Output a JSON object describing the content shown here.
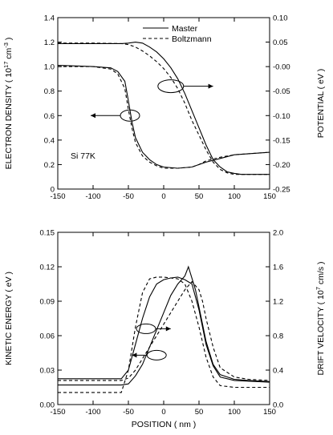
{
  "chart_data": [
    {
      "type": "line",
      "xlabel": "",
      "ylabel": "ELECTRON DENSITY ( 10{17} cm{-3} )",
      "ylabel_parts": [
        "ELECTRON DENSITY ( 10",
        "17",
        " cm",
        "-3",
        " )"
      ],
      "y2label": "POTENTIAL ( eV )",
      "xlim": [
        -150,
        150
      ],
      "ylim": [
        0,
        1.4
      ],
      "y2lim": [
        -0.25,
        0.1
      ],
      "x_ticks": [
        "-150",
        "-100",
        "-50",
        "0",
        "50",
        "100",
        "150"
      ],
      "y_ticks": [
        "0",
        "0.2",
        "0.4",
        "0.6",
        "0.8",
        "1.0",
        "1.2",
        "1.4"
      ],
      "y2_ticks": [
        "-0.25",
        "-0.20",
        "-0.15",
        "-0.10",
        "-0.05",
        "-0.00",
        "0.05",
        "0.10"
      ],
      "legend": [
        "Master",
        "Boltzmann"
      ],
      "annotation": "Si 77K",
      "grid": false,
      "series": [
        {
          "name": "Master",
          "axis": "left",
          "style": "solid",
          "x": [
            -150,
            -100,
            -75,
            -65,
            -55,
            -50,
            -45,
            -40,
            -30,
            -20,
            -10,
            0,
            20,
            40,
            50,
            60,
            80,
            100,
            150
          ],
          "y": [
            1.01,
            1.0,
            0.99,
            0.96,
            0.88,
            0.72,
            0.55,
            0.42,
            0.3,
            0.24,
            0.2,
            0.18,
            0.17,
            0.18,
            0.2,
            0.22,
            0.25,
            0.28,
            0.3
          ]
        },
        {
          "name": "Boltzmann",
          "axis": "left",
          "style": "dashed",
          "x": [
            -150,
            -100,
            -75,
            -65,
            -55,
            -50,
            -45,
            -40,
            -30,
            -20,
            -10,
            0,
            20,
            40,
            50,
            60,
            80,
            100,
            150
          ],
          "y": [
            1.0,
            1.0,
            0.98,
            0.94,
            0.82,
            0.65,
            0.5,
            0.38,
            0.27,
            0.22,
            0.19,
            0.17,
            0.17,
            0.18,
            0.2,
            0.23,
            0.26,
            0.28,
            0.3
          ]
        },
        {
          "name": "Master",
          "axis": "right",
          "style": "solid",
          "x": [
            -150,
            -100,
            -60,
            -50,
            -40,
            -30,
            -20,
            -10,
            0,
            10,
            20,
            30,
            40,
            50,
            60,
            70,
            80,
            90,
            100,
            110,
            120,
            130,
            140,
            150
          ],
          "y": [
            0.047,
            0.047,
            0.047,
            0.048,
            0.05,
            0.048,
            0.04,
            0.03,
            0.016,
            -0.002,
            -0.025,
            -0.055,
            -0.09,
            -0.125,
            -0.16,
            -0.19,
            -0.205,
            -0.215,
            -0.218,
            -0.22,
            -0.22,
            -0.22,
            -0.22,
            -0.22
          ]
        },
        {
          "name": "Boltzmann",
          "axis": "right",
          "style": "dashed",
          "x": [
            -150,
            -100,
            -60,
            -50,
            -40,
            -30,
            -20,
            -10,
            0,
            10,
            20,
            30,
            40,
            50,
            60,
            70,
            80,
            90,
            100,
            110,
            120,
            130,
            140,
            150
          ],
          "y": [
            0.048,
            0.048,
            0.047,
            0.045,
            0.04,
            0.032,
            0.022,
            0.01,
            -0.004,
            -0.022,
            -0.045,
            -0.075,
            -0.11,
            -0.14,
            -0.17,
            -0.195,
            -0.21,
            -0.217,
            -0.22,
            -0.22,
            -0.22,
            -0.22,
            -0.22,
            -0.22
          ]
        }
      ]
    },
    {
      "type": "line",
      "xlabel": "POSITION ( nm )",
      "ylabel": "KINETIC ENERGY ( eV )",
      "y2label": "DRIFT VELOCITY ( 10{7} cm/s )",
      "y2label_parts": [
        "DRIFT VELOCITY ( 10",
        "7",
        " cm/s )"
      ],
      "xlim": [
        -150,
        150
      ],
      "ylim": [
        0,
        0.15
      ],
      "y2lim": [
        0,
        2.0
      ],
      "x_ticks": [
        "-150",
        "-100",
        "-50",
        "0",
        "50",
        "100",
        "150"
      ],
      "y_ticks": [
        "0.00",
        "0.03",
        "0.06",
        "0.09",
        "0.12",
        "0.15"
      ],
      "y2_ticks": [
        "0.0",
        "0.4",
        "0.8",
        "1.2",
        "1.6",
        "2.0"
      ],
      "grid": false,
      "series": [
        {
          "name": "Master",
          "axis": "left",
          "style": "solid",
          "x": [
            -150,
            -100,
            -60,
            -50,
            -40,
            -30,
            -20,
            -10,
            0,
            10,
            20,
            30,
            35,
            40,
            45,
            50,
            55,
            60,
            70,
            80,
            100,
            120,
            150
          ],
          "y": [
            0.017,
            0.017,
            0.017,
            0.018,
            0.025,
            0.035,
            0.05,
            0.065,
            0.08,
            0.095,
            0.105,
            0.112,
            0.12,
            0.11,
            0.1,
            0.085,
            0.07,
            0.055,
            0.035,
            0.026,
            0.022,
            0.021,
            0.02
          ]
        },
        {
          "name": "Boltzmann",
          "axis": "left",
          "style": "dashed",
          "x": [
            -150,
            -100,
            -60,
            -50,
            -40,
            -30,
            -20,
            -10,
            0,
            10,
            20,
            30,
            40,
            50,
            55,
            60,
            70,
            80,
            100,
            120,
            150
          ],
          "y": [
            0.021,
            0.021,
            0.021,
            0.023,
            0.03,
            0.04,
            0.05,
            0.06,
            0.07,
            0.08,
            0.09,
            0.1,
            0.107,
            0.1,
            0.09,
            0.075,
            0.05,
            0.032,
            0.024,
            0.022,
            0.021
          ]
        },
        {
          "name": "Master",
          "axis": "right",
          "style": "solid",
          "x": [
            -150,
            -100,
            -60,
            -50,
            -40,
            -30,
            -20,
            -10,
            0,
            10,
            20,
            30,
            40,
            50,
            60,
            70,
            80,
            100,
            150
          ],
          "y": [
            0.3,
            0.3,
            0.3,
            0.4,
            0.7,
            1.0,
            1.25,
            1.4,
            1.45,
            1.47,
            1.48,
            1.45,
            1.4,
            1.1,
            0.7,
            0.45,
            0.32,
            0.28,
            0.26
          ]
        },
        {
          "name": "Boltzmann",
          "axis": "right",
          "style": "dashed",
          "x": [
            -150,
            -100,
            -60,
            -50,
            -40,
            -30,
            -20,
            -10,
            0,
            10,
            20,
            30,
            40,
            50,
            60,
            70,
            80,
            100,
            150
          ],
          "y": [
            0.14,
            0.14,
            0.14,
            0.4,
            0.9,
            1.3,
            1.46,
            1.48,
            1.48,
            1.47,
            1.46,
            1.4,
            1.2,
            0.9,
            0.55,
            0.32,
            0.22,
            0.2,
            0.2
          ]
        }
      ]
    }
  ]
}
